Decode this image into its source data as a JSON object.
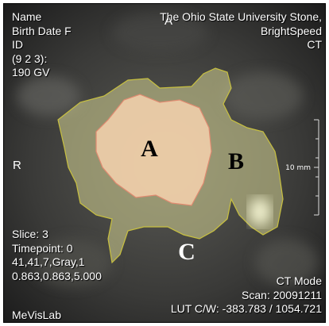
{
  "overlay": {
    "top_left": [
      "Name",
      "Birth Date  F",
      "ID",
      "(9 2 3):",
      "190 GV"
    ],
    "top_right": [
      "The Ohio State University Stone,",
      "BrightSpeed",
      "CT"
    ],
    "bottom_left": [
      "Slice: 3",
      "Timepoint: 0",
      "41,41,7,Gray,1",
      "0.863,0.863,5.000"
    ],
    "software": "MeVisLab",
    "bottom_right": [
      "CT Mode",
      "Scan: 20091211",
      "LUT C/W: -383.783 / 1054.721"
    ],
    "orientation": {
      "top": "A",
      "left": "R"
    },
    "scale_bar": "10 mm"
  },
  "regions": [
    {
      "label": "A"
    },
    {
      "label": "B"
    },
    {
      "label": "C"
    }
  ]
}
